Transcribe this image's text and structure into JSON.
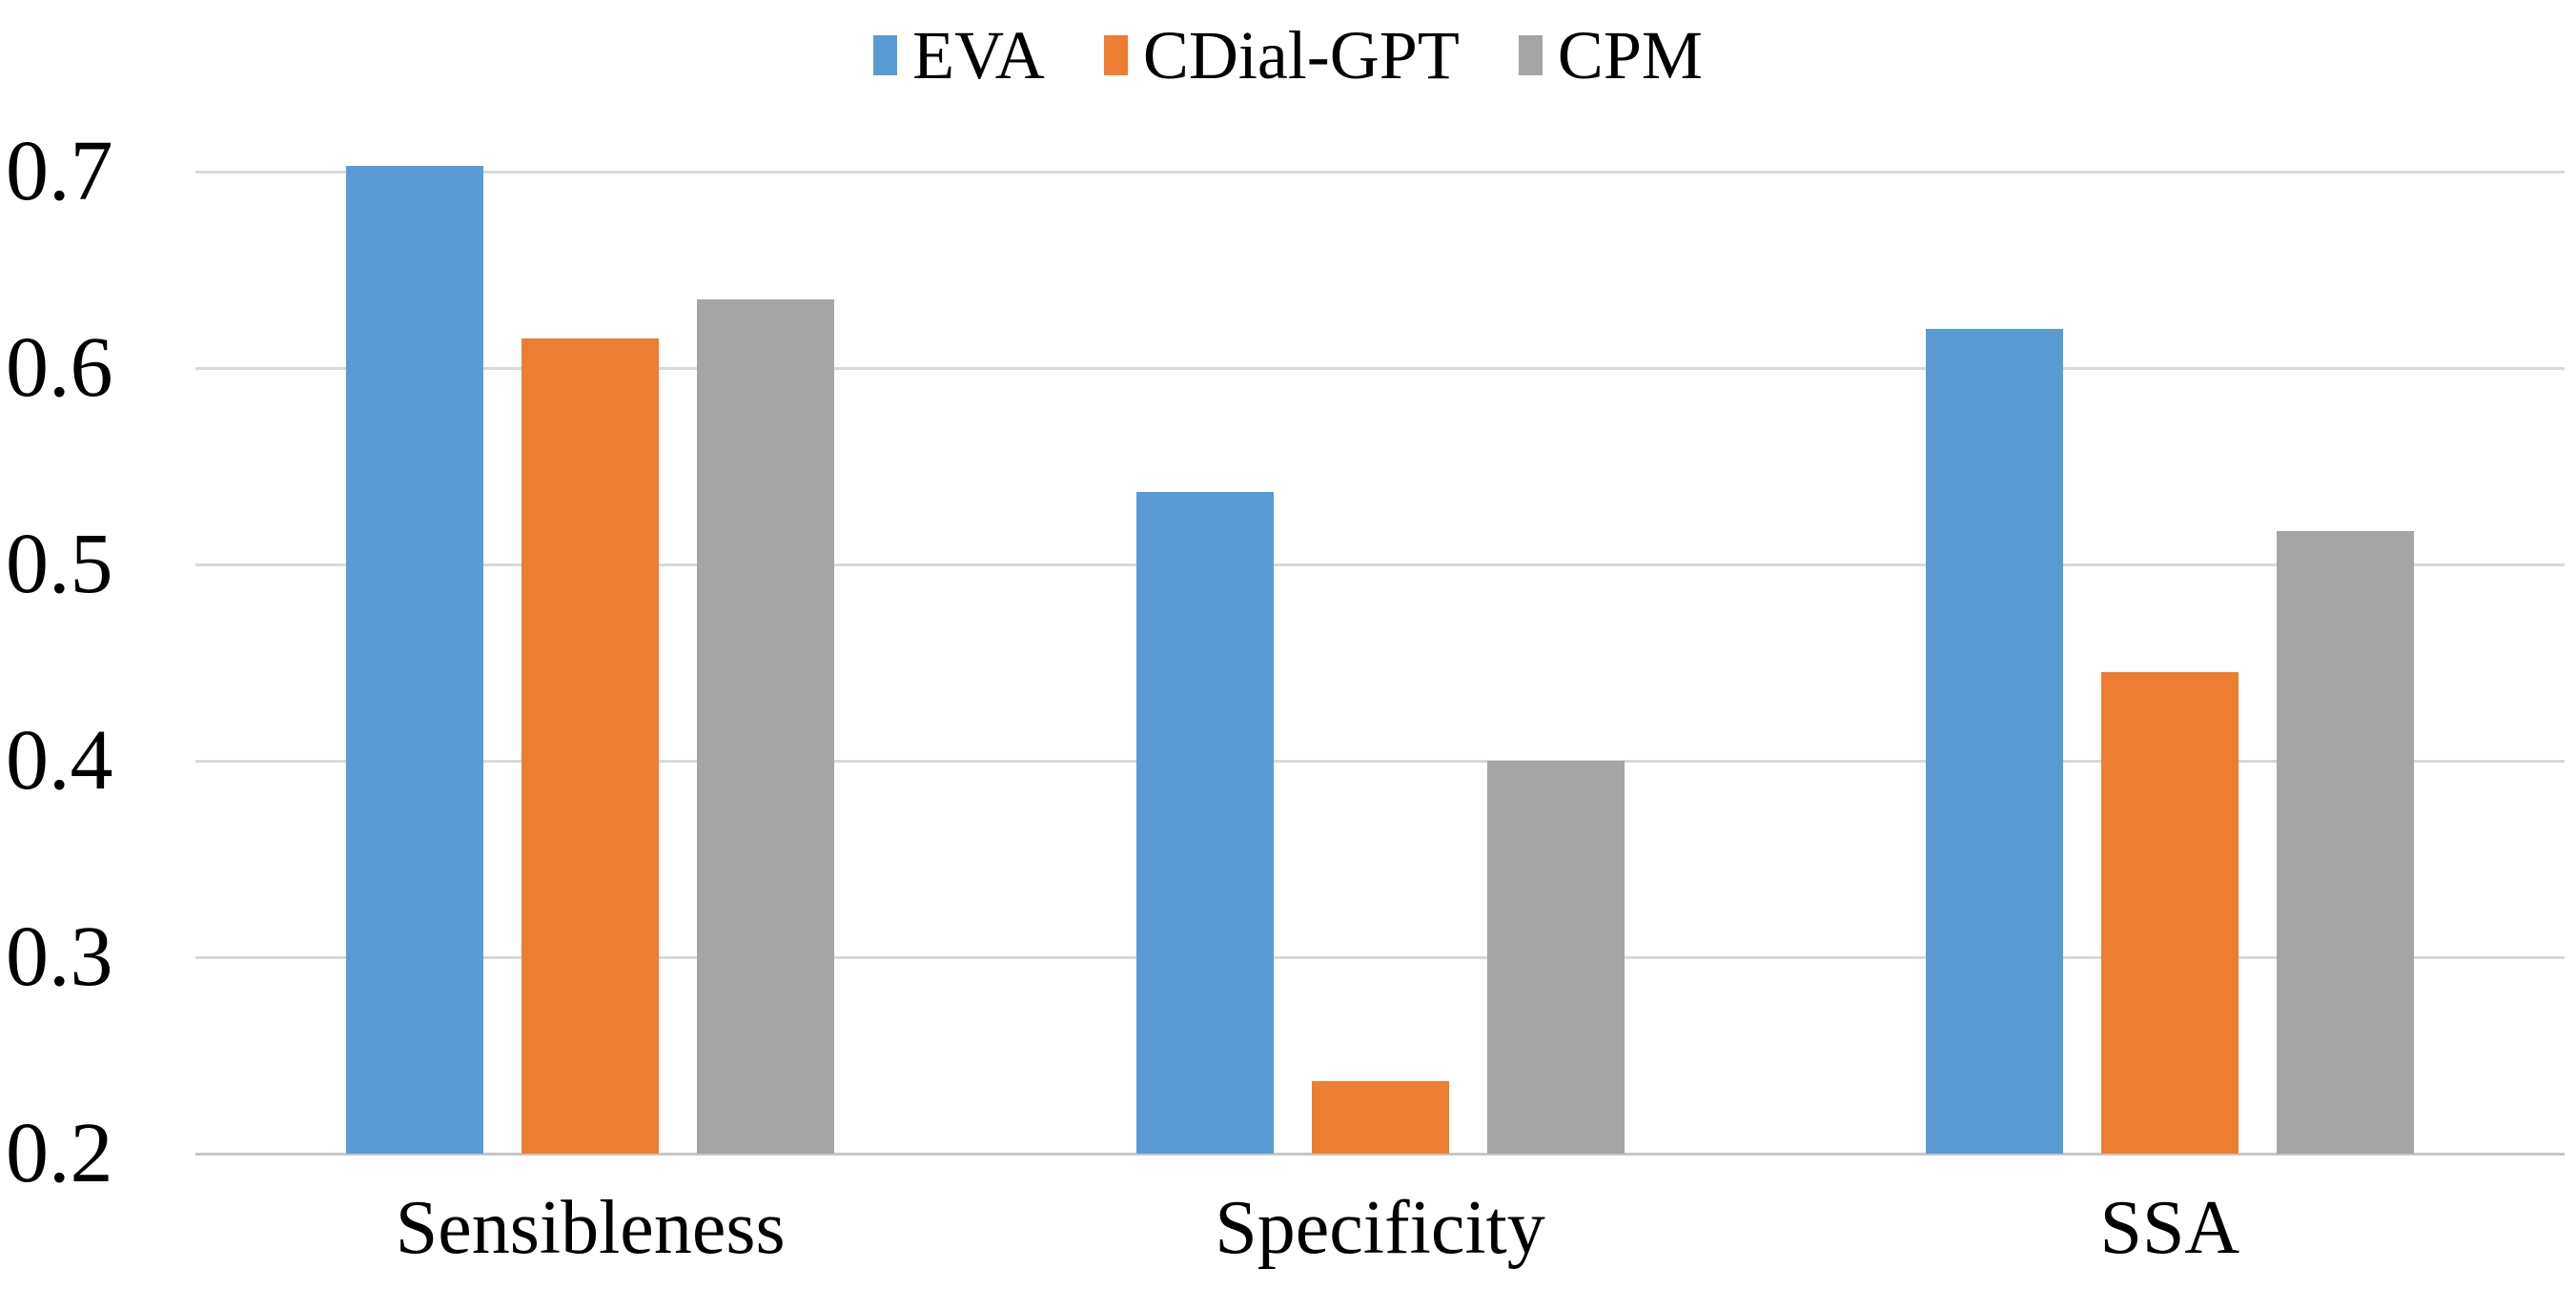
{
  "chart_data": {
    "type": "bar",
    "title": "",
    "xlabel": "",
    "ylabel": "",
    "categories": [
      "Sensibleness",
      "Specificity",
      "SSA"
    ],
    "series": [
      {
        "name": "EVA",
        "color": "#5B9BD5",
        "values": [
          0.703,
          0.537,
          0.62
        ]
      },
      {
        "name": "CDial-GPT",
        "color": "#ED7D31",
        "values": [
          0.615,
          0.237,
          0.445
        ]
      },
      {
        "name": "CPM",
        "color": "#A5A5A5",
        "values": [
          0.635,
          0.4,
          0.517
        ]
      }
    ],
    "ylim": [
      0.2,
      0.7
    ],
    "yticks": [
      0.7,
      0.6,
      0.5,
      0.4,
      0.3,
      0.2
    ],
    "ytick_labels": [
      "0.7",
      "0.6",
      "0.5",
      "0.4",
      "0.3",
      "0.2"
    ],
    "grid": true,
    "legend_position": "top",
    "colors": {
      "gridline": "#D9D9D9",
      "axis_line": "#C6C6C6",
      "background": "#FFFFFF",
      "text": "#000000"
    }
  }
}
